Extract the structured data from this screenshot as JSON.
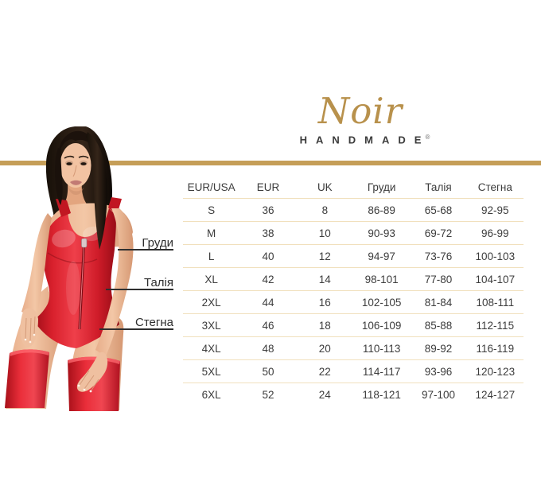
{
  "brand": {
    "script_name": "Noir",
    "wordmark": "HANDMADE",
    "registered_mark": "®"
  },
  "measurement_labels": {
    "chest": "Груди",
    "waist": "Талія",
    "hips": "Стегна"
  },
  "chart_data": {
    "type": "table",
    "columns": [
      "EUR/USA",
      "EUR",
      "UK",
      "Груди",
      "Талія",
      "Стегна"
    ],
    "rows": [
      [
        "S",
        "36",
        "8",
        "86-89",
        "65-68",
        "92-95"
      ],
      [
        "M",
        "38",
        "10",
        "90-93",
        "69-72",
        "96-99"
      ],
      [
        "L",
        "40",
        "12",
        "94-97",
        "73-76",
        "100-103"
      ],
      [
        "XL",
        "42",
        "14",
        "98-101",
        "77-80",
        "104-107"
      ],
      [
        "2XL",
        "44",
        "16",
        "102-105",
        "81-84",
        "108-111"
      ],
      [
        "3XL",
        "46",
        "18",
        "106-109",
        "85-88",
        "112-115"
      ],
      [
        "4XL",
        "48",
        "20",
        "110-113",
        "89-92",
        "116-119"
      ],
      [
        "5XL",
        "50",
        "22",
        "114-117",
        "93-96",
        "120-123"
      ],
      [
        "6XL",
        "52",
        "24",
        "118-121",
        "97-100",
        "124-127"
      ]
    ]
  },
  "colors": {
    "gold_band": "#C59E58",
    "logo_gold": "#B8914C",
    "row_separator": "#F1E0BD",
    "table_text": "#3C3C3C",
    "suit_red": "#D8202C"
  }
}
